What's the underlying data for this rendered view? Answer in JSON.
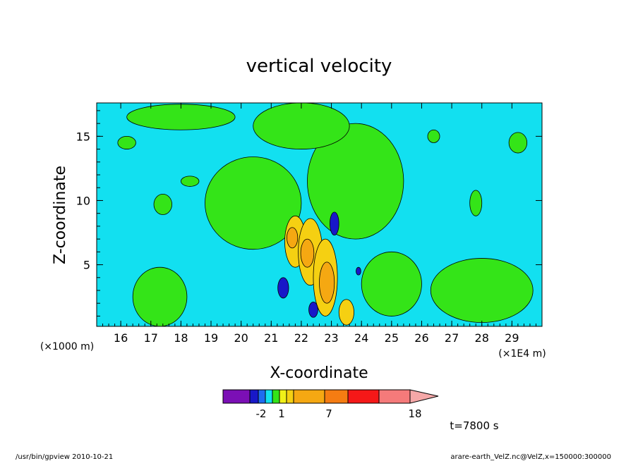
{
  "chart_data": {
    "type": "heatmap",
    "title": "vertical velocity",
    "xlabel": "X-coordinate",
    "ylabel": "Z-coordinate",
    "x_unit_note": "(×1E4 m)",
    "y_unit_note": "(×1000 m)",
    "xlim": [
      15.2,
      30.0
    ],
    "ylim": [
      0.2,
      17.6
    ],
    "x_ticks": [
      "16",
      "17",
      "18",
      "19",
      "20",
      "21",
      "22",
      "23",
      "24",
      "25",
      "26",
      "27",
      "28",
      "29"
    ],
    "y_ticks": [
      "5",
      "10",
      "15"
    ],
    "time_label": "t=7800 s",
    "colorbar": {
      "colors": [
        "#7b0fb5",
        "#1818c8",
        "#1e6cf0",
        "#12e0f0",
        "#34e418",
        "#f0f018",
        "#f5d012",
        "#f5a812",
        "#f57c12",
        "#f51818",
        "#f57a7a",
        "#f5a8a8"
      ],
      "tick_labels": [
        "-2",
        "1",
        "7",
        "18"
      ]
    },
    "regions": [
      {
        "level": "positive",
        "color": "#34e418",
        "x": 20.4,
        "z": 9.8,
        "rx": 1.6,
        "rz": 3.6
      },
      {
        "level": "positive",
        "color": "#34e418",
        "x": 23.8,
        "z": 11.5,
        "rx": 1.6,
        "rz": 4.5
      },
      {
        "level": "positive",
        "color": "#34e418",
        "x": 22.0,
        "z": 15.8,
        "rx": 1.6,
        "rz": 1.8
      },
      {
        "level": "positive",
        "color": "#34e418",
        "x": 17.3,
        "z": 2.5,
        "rx": 0.9,
        "rz": 2.3
      },
      {
        "level": "positive",
        "color": "#34e418",
        "x": 25.0,
        "z": 3.5,
        "rx": 1.0,
        "rz": 2.5
      },
      {
        "level": "positive",
        "color": "#34e418",
        "x": 28.0,
        "z": 3.0,
        "rx": 1.7,
        "rz": 2.5
      },
      {
        "level": "positive",
        "color": "#34e418",
        "x": 18.0,
        "z": 16.5,
        "rx": 1.8,
        "rz": 1.0
      },
      {
        "level": "positive",
        "color": "#34e418",
        "x": 16.2,
        "z": 14.5,
        "rx": 0.3,
        "rz": 0.5
      },
      {
        "level": "positive",
        "color": "#34e418",
        "x": 18.3,
        "z": 11.5,
        "rx": 0.3,
        "rz": 0.4
      },
      {
        "level": "positive",
        "color": "#34e418",
        "x": 17.4,
        "z": 9.7,
        "rx": 0.3,
        "rz": 0.8
      },
      {
        "level": "positive",
        "color": "#34e418",
        "x": 26.4,
        "z": 15.0,
        "rx": 0.2,
        "rz": 0.5
      },
      {
        "level": "positive",
        "color": "#34e418",
        "x": 27.8,
        "z": 9.8,
        "rx": 0.2,
        "rz": 1.0
      },
      {
        "level": "positive",
        "color": "#34e418",
        "x": 29.2,
        "z": 14.5,
        "rx": 0.3,
        "rz": 0.8
      },
      {
        "level": "positive",
        "color": "#f5d012",
        "x": 21.8,
        "z": 6.8,
        "rx": 0.35,
        "rz": 2.0
      },
      {
        "level": "positive",
        "color": "#f5d012",
        "x": 22.3,
        "z": 6.0,
        "rx": 0.4,
        "rz": 2.6
      },
      {
        "level": "positive",
        "color": "#f5d012",
        "x": 22.8,
        "z": 4.0,
        "rx": 0.4,
        "rz": 3.0
      },
      {
        "level": "positive",
        "color": "#f5d012",
        "x": 23.5,
        "z": 1.3,
        "rx": 0.25,
        "rz": 1.0
      },
      {
        "level": "positive",
        "color": "#f5a812",
        "x": 21.7,
        "z": 7.1,
        "rx": 0.18,
        "rz": 0.8
      },
      {
        "level": "positive",
        "color": "#f5a812",
        "x": 22.2,
        "z": 5.9,
        "rx": 0.22,
        "rz": 1.1
      },
      {
        "level": "positive",
        "color": "#f5a812",
        "x": 22.85,
        "z": 3.6,
        "rx": 0.25,
        "rz": 1.6
      },
      {
        "level": "negative",
        "color": "#1818c8",
        "x": 23.1,
        "z": 8.2,
        "rx": 0.15,
        "rz": 0.9
      },
      {
        "level": "negative",
        "color": "#1818c8",
        "x": 21.4,
        "z": 3.2,
        "rx": 0.18,
        "rz": 0.8
      },
      {
        "level": "negative",
        "color": "#1818c8",
        "x": 22.4,
        "z": 1.5,
        "rx": 0.15,
        "rz": 0.6
      },
      {
        "level": "negative",
        "color": "#1818c8",
        "x": 23.9,
        "z": 4.5,
        "rx": 0.08,
        "rz": 0.3
      }
    ]
  },
  "footer": {
    "left": "/usr/bin/gpview   2010-10-21",
    "right": "arare-earth_VelZ.nc@VelZ,x=150000:300000"
  }
}
